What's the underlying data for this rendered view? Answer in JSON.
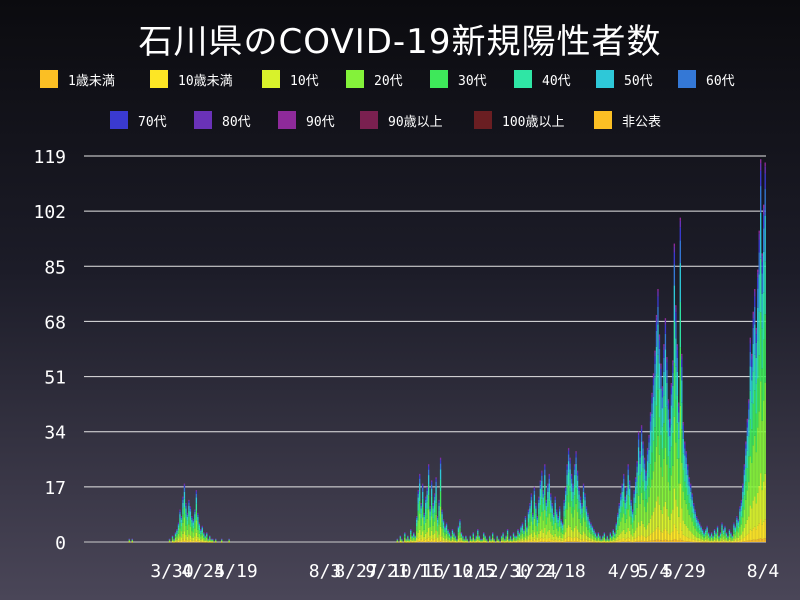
{
  "chart_data": {
    "type": "bar",
    "stacked": true,
    "title": "石川県のCOVID-19新規陽性者数",
    "xlabel": "",
    "ylabel": "",
    "ylim": [
      0,
      119
    ],
    "y_ticks": [
      0,
      17,
      34,
      51,
      68,
      85,
      102,
      119
    ],
    "x_ticks": [
      "3/30",
      "4/24",
      "5/19",
      "8/3",
      "8/27",
      "9/21",
      "10/16",
      "11/10",
      "12/5",
      "12/30",
      "1/24",
      "2/18",
      "4/9",
      "5/4",
      "5/29",
      "8/4"
    ],
    "grid": true,
    "legend_position": "top",
    "series": [
      {
        "name": "1歳未満",
        "color": "#fbbf24"
      },
      {
        "name": "10歳未満",
        "color": "#fde625"
      },
      {
        "name": "10代",
        "color": "#d8f22b"
      },
      {
        "name": "20代",
        "color": "#84f23a"
      },
      {
        "name": "30代",
        "color": "#3ee85a"
      },
      {
        "name": "40代",
        "color": "#2fe6a5"
      },
      {
        "name": "50代",
        "color": "#2ec8d8"
      },
      {
        "name": "60代",
        "color": "#3478d6"
      },
      {
        "name": "70代",
        "color": "#3a3ad0"
      },
      {
        "name": "80代",
        "color": "#6a32b8"
      },
      {
        "name": "90代",
        "color": "#8e2a9a"
      },
      {
        "name": "90歳以上",
        "color": "#7a2050"
      },
      {
        "name": "100歳以上",
        "color": "#6a1e22"
      },
      {
        "name": "非公表",
        "color": "#fbbf24"
      }
    ],
    "daily_totals": [
      0,
      0,
      0,
      0,
      0,
      0,
      0,
      0,
      0,
      0,
      0,
      0,
      0,
      0,
      0,
      0,
      0,
      0,
      0,
      0,
      0,
      0,
      0,
      0,
      0,
      0,
      0,
      0,
      0,
      0,
      1,
      0,
      1,
      0,
      0,
      0,
      0,
      0,
      0,
      0,
      0,
      0,
      0,
      0,
      0,
      0,
      0,
      0,
      0,
      0,
      0,
      0,
      0,
      0,
      0,
      0,
      0,
      1,
      0,
      2,
      1,
      3,
      4,
      6,
      10,
      8,
      14,
      18,
      12,
      9,
      13,
      11,
      8,
      7,
      10,
      16,
      9,
      6,
      4,
      5,
      3,
      2,
      3,
      1,
      2,
      1,
      1,
      0,
      1,
      0,
      0,
      0,
      1,
      0,
      0,
      0,
      0,
      1,
      0,
      0,
      0,
      0,
      0,
      0,
      0,
      0,
      0,
      0,
      0,
      0,
      0,
      0,
      0,
      0,
      0,
      0,
      0,
      0,
      0,
      0,
      0,
      0,
      0,
      0,
      0,
      0,
      0,
      0,
      0,
      0,
      0,
      0,
      0,
      0,
      0,
      0,
      0,
      0,
      0,
      0,
      0,
      0,
      0,
      0,
      0,
      0,
      0,
      0,
      0,
      0,
      0,
      0,
      0,
      0,
      0,
      0,
      0,
      0,
      0,
      0,
      0,
      0,
      0,
      0,
      0,
      0,
      0,
      0,
      0,
      0,
      0,
      0,
      0,
      0,
      0,
      0,
      0,
      0,
      0,
      0,
      0,
      0,
      0,
      0,
      0,
      0,
      0,
      0,
      0,
      0,
      0,
      0,
      0,
      0,
      0,
      0,
      0,
      0,
      0,
      0,
      0,
      0,
      0,
      0,
      0,
      0,
      0,
      0,
      0,
      0,
      1,
      0,
      2,
      1,
      0,
      3,
      1,
      2,
      1,
      4,
      2,
      3,
      2,
      8,
      16,
      21,
      12,
      18,
      9,
      14,
      17,
      24,
      11,
      19,
      12,
      15,
      20,
      8,
      13,
      26,
      10,
      7,
      5,
      6,
      4,
      3,
      2,
      4,
      3,
      2,
      1,
      5,
      7,
      3,
      2,
      1,
      2,
      1,
      0,
      2,
      1,
      3,
      1,
      2,
      4,
      2,
      1,
      1,
      3,
      2,
      1,
      0,
      2,
      1,
      3,
      1,
      0,
      2,
      1,
      0,
      2,
      3,
      1,
      2,
      4,
      1,
      2,
      1,
      3,
      2,
      2,
      4,
      3,
      5,
      6,
      4,
      8,
      5,
      10,
      12,
      15,
      9,
      17,
      12,
      8,
      14,
      19,
      22,
      16,
      24,
      13,
      18,
      21,
      15,
      12,
      9,
      14,
      10,
      8,
      11,
      7,
      6,
      13,
      17,
      24,
      29,
      26,
      21,
      18,
      24,
      28,
      22,
      17,
      14,
      12,
      18,
      15,
      11,
      9,
      7,
      6,
      5,
      4,
      3,
      2,
      3,
      2,
      1,
      2,
      3,
      1,
      2,
      1,
      3,
      2,
      4,
      3,
      6,
      9,
      12,
      15,
      18,
      21,
      14,
      17,
      24,
      19,
      13,
      10,
      16,
      20,
      25,
      34,
      28,
      36,
      31,
      26,
      22,
      29,
      33,
      40,
      46,
      52,
      59,
      70,
      78,
      64,
      55,
      48,
      61,
      69,
      57,
      44,
      38,
      49,
      56,
      92,
      73,
      61,
      43,
      100,
      58,
      37,
      31,
      28,
      24,
      20,
      18,
      15,
      12,
      10,
      8,
      7,
      6,
      5,
      4,
      3,
      4,
      5,
      3,
      2,
      3,
      2,
      4,
      3,
      5,
      2,
      3,
      6,
      4,
      5,
      3,
      2,
      4,
      3,
      2,
      6,
      5,
      8,
      7,
      11,
      13,
      18,
      24,
      31,
      38,
      44,
      63,
      58,
      71,
      78,
      66,
      84,
      96,
      118,
      89,
      104,
      117
    ]
  }
}
